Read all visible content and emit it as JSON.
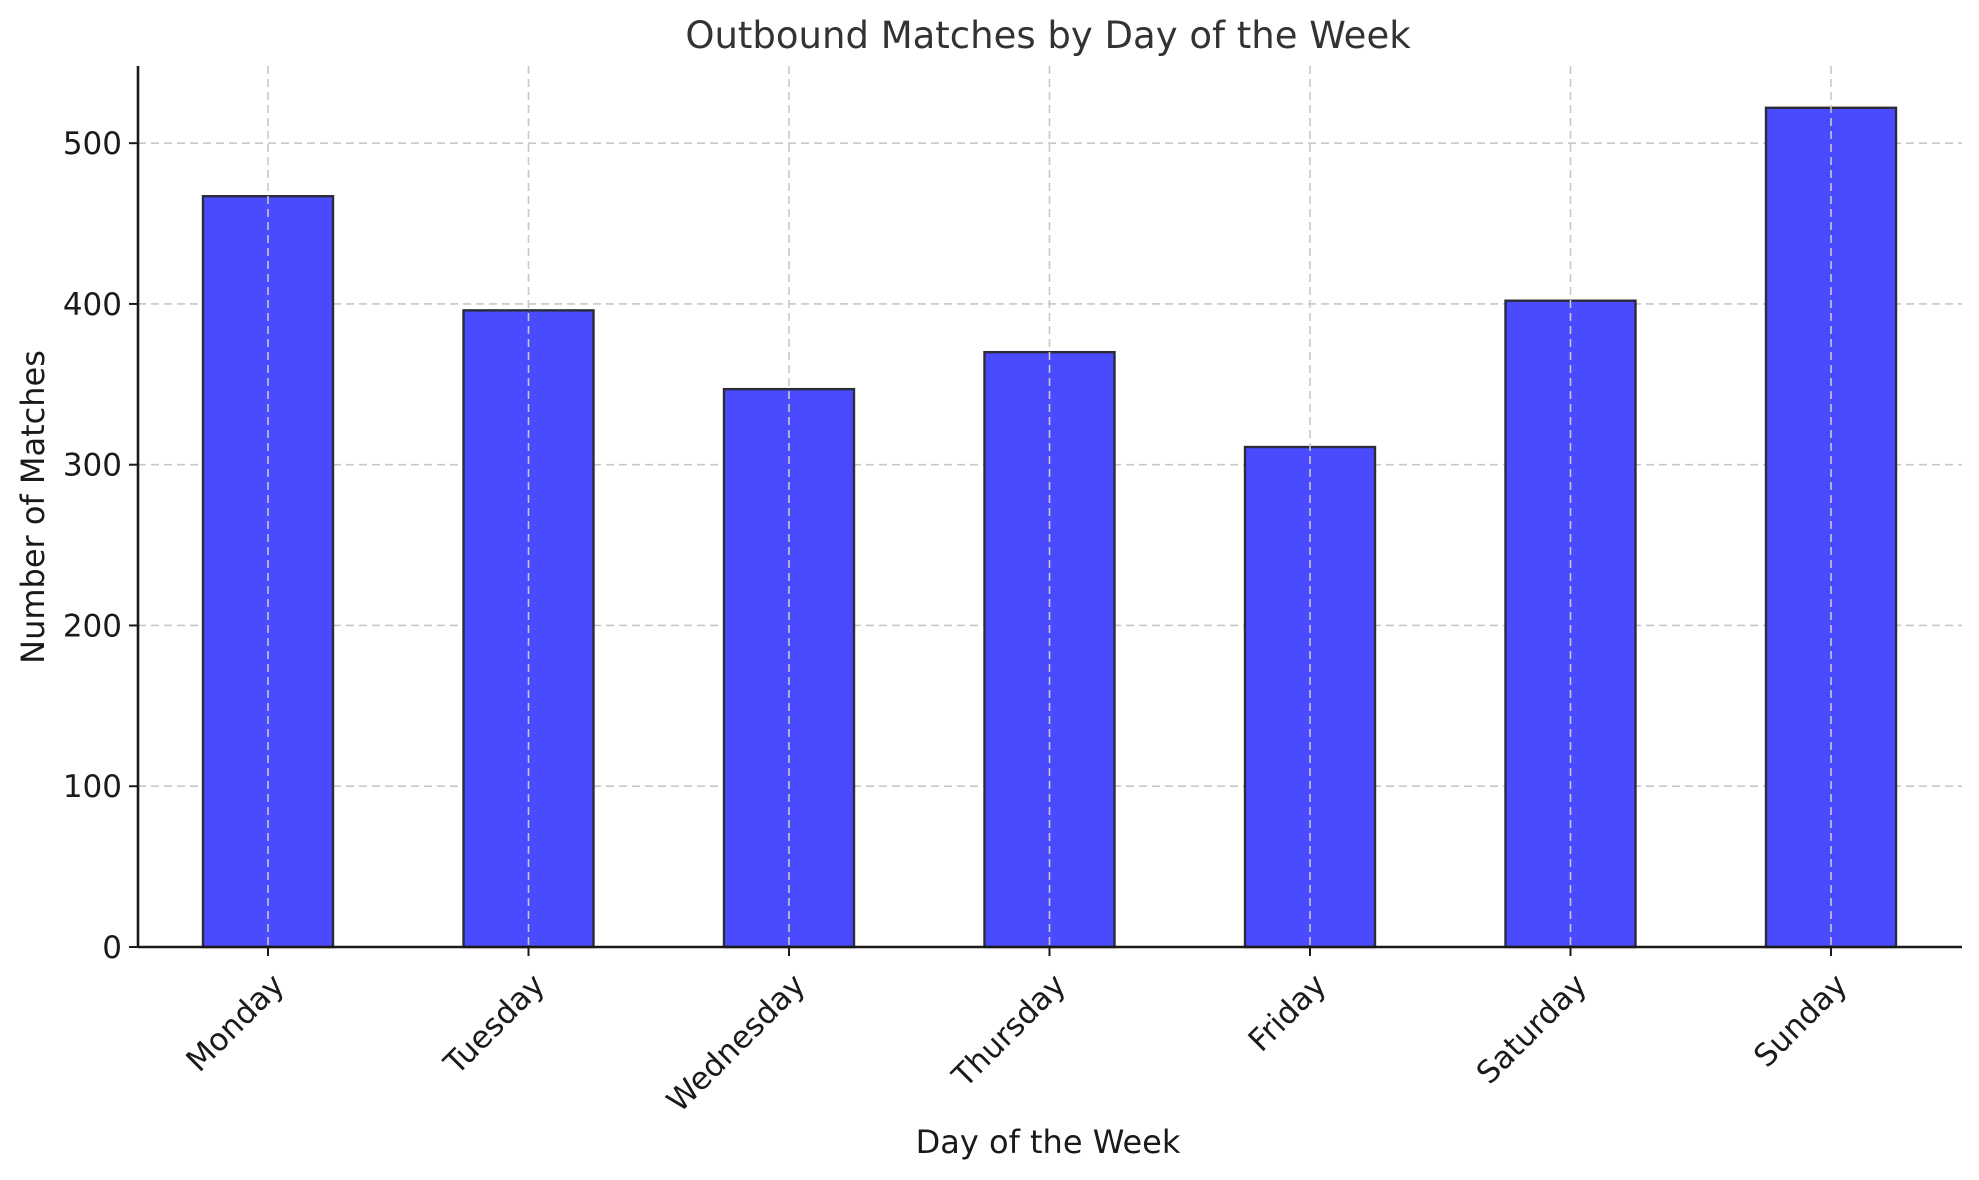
{
  "chart_data": {
    "type": "bar",
    "title": "Outbound Matches by Day of the Week",
    "xlabel": "Day of the Week",
    "ylabel": "Number of Matches",
    "categories": [
      "Monday",
      "Tuesday",
      "Wednesday",
      "Thursday",
      "Friday",
      "Saturday",
      "Sunday"
    ],
    "values": [
      467,
      396,
      347,
      370,
      311,
      402,
      522
    ],
    "ylim": [
      0,
      548
    ],
    "yticks": [
      0,
      100,
      200,
      300,
      400,
      500
    ],
    "grid": true,
    "colors": {
      "bar_fill": "#4a4aff",
      "bar_edge": "#2b2b3a"
    }
  }
}
